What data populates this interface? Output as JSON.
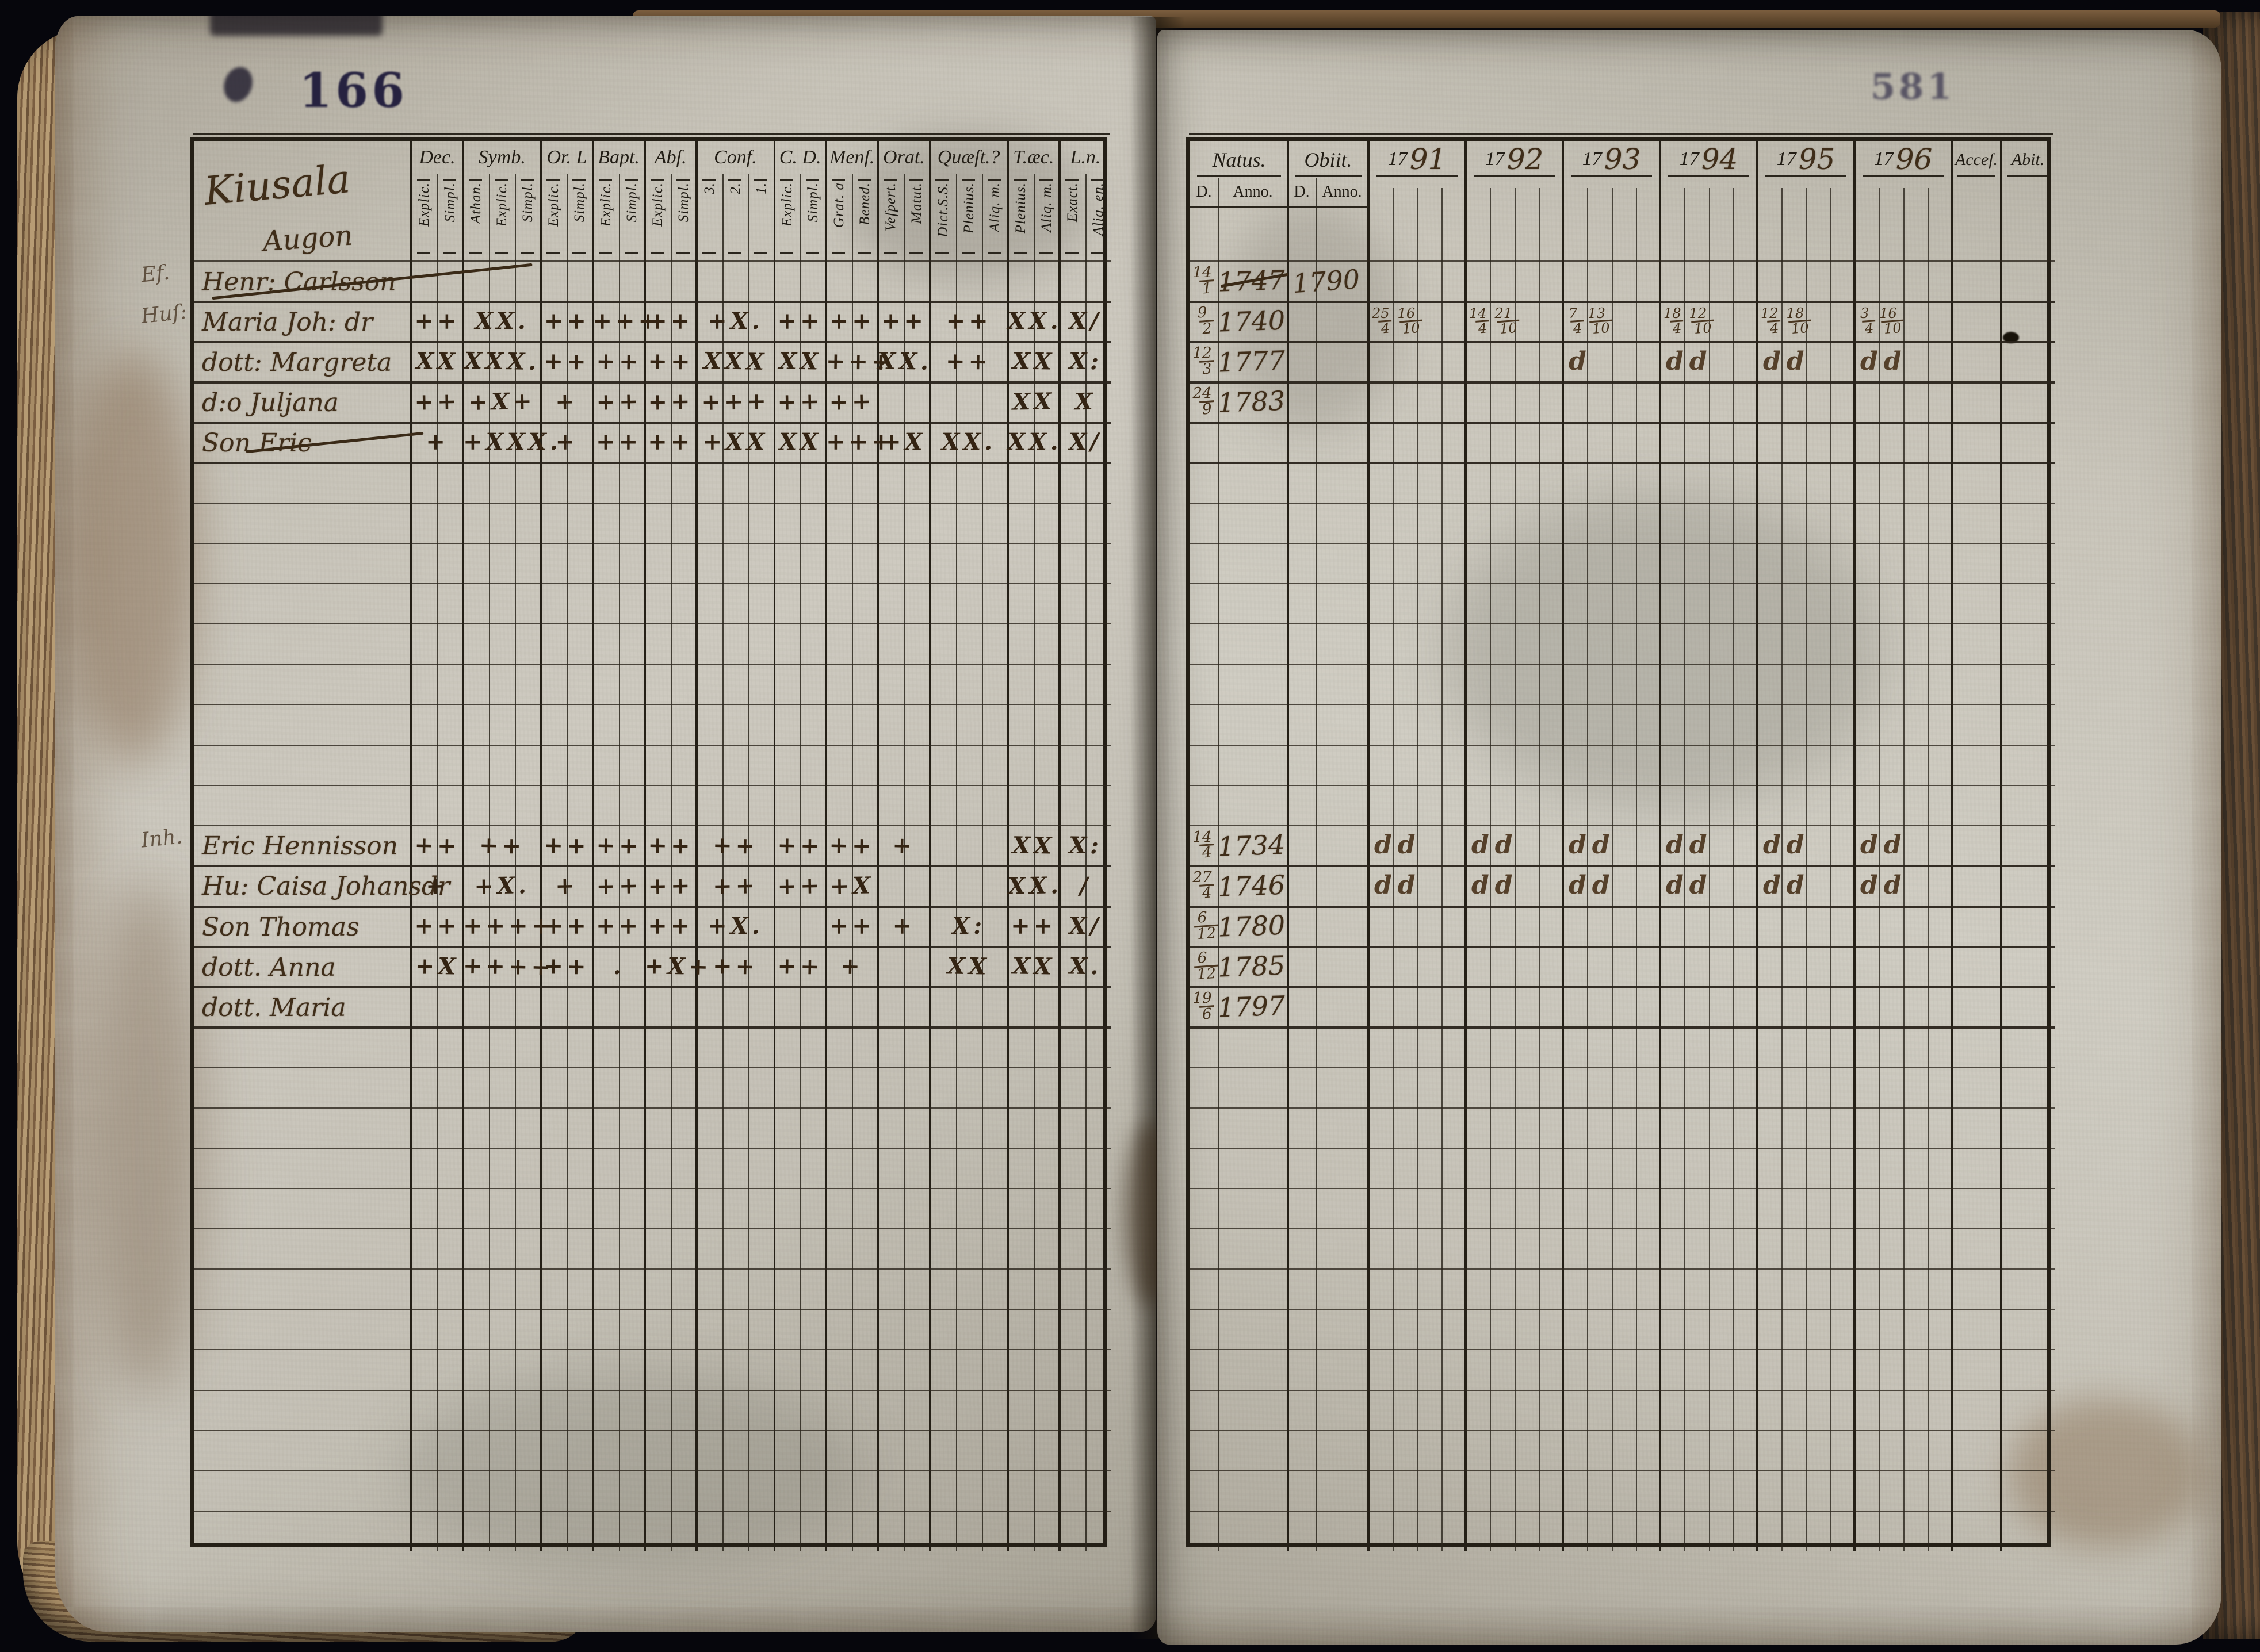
{
  "page": {
    "left_number": "166",
    "right_number": "581"
  },
  "ink": {
    "print": "#211c14",
    "hand": "#3f2d19",
    "hand_light": "#5d472e",
    "stamp_left": "#262240",
    "stamp_right": "#4a465a"
  },
  "left_page": {
    "title_line1": "Kiusala",
    "title_line2": "Augon",
    "marginalia": [
      {
        "row": 0,
        "text": "Ef."
      },
      {
        "row": 1,
        "text": "Huſ:"
      },
      {
        "row": 14,
        "text": "Inh."
      }
    ],
    "header_groups": [
      {
        "label": "Dec.",
        "subs": [
          "Explic.",
          "Simpl."
        ]
      },
      {
        "label": "Symb.",
        "subs": [
          "Athan.",
          "Explic.",
          "Simpl."
        ]
      },
      {
        "label": "Or. L",
        "subs": [
          "Explic.",
          "Simpl."
        ]
      },
      {
        "label": "Bapt.",
        "subs": [
          "Explic.",
          "Simpl."
        ]
      },
      {
        "label": "Abſ.",
        "subs": [
          "Explic.",
          "Simpl."
        ]
      },
      {
        "label": "Conf.",
        "subs": [
          "3.",
          "2.",
          "1."
        ]
      },
      {
        "label": "C. D.",
        "subs": [
          "Explic.",
          "Simpl."
        ]
      },
      {
        "label": "Menſ.",
        "subs": [
          "Grat. a",
          "Bened."
        ]
      },
      {
        "label": "Orat.",
        "subs": [
          "Veſpert.",
          "Matut."
        ]
      },
      {
        "label": "Quæſt.?",
        "subs": [
          "Dict.S.S.",
          "Plenius.",
          "Aliq. m."
        ]
      },
      {
        "label": "T.æc.",
        "subs": [
          "Plenius.",
          "Aliq. m."
        ]
      },
      {
        "label": "L.n.",
        "subs": [
          "Exact.",
          "Aliq. en."
        ]
      }
    ],
    "rows": [
      {
        "row": 0,
        "name": "Henr: Carlsson",
        "struck": true,
        "marks": [
          "",
          "",
          "",
          "",
          "",
          "",
          "",
          "",
          "",
          "",
          "",
          ""
        ]
      },
      {
        "row": 1,
        "name": "Maria Joh: dr",
        "marks": [
          "++",
          "XX.",
          "++",
          "+++",
          "++",
          "+X.",
          "++",
          "++",
          "++",
          "++",
          "XX.",
          "X/"
        ]
      },
      {
        "row": 2,
        "name": "dott: Margreta",
        "marks": [
          "XX",
          "XXX.",
          "++",
          "++",
          "++",
          "XXX",
          "XX",
          "+++",
          "XX.",
          "++",
          "XX",
          "X:"
        ]
      },
      {
        "row": 3,
        "name": "d:o Juljana",
        "marks": [
          "++",
          "+X+",
          "+",
          "++",
          "++",
          "+++",
          "++",
          "++",
          "",
          "",
          "XX",
          "X"
        ]
      },
      {
        "row": 4,
        "name": "Son Eric",
        "struck": true,
        "marks": [
          "+",
          "+XXX.",
          "+",
          "++",
          "++",
          "+XX",
          "XX",
          "+++",
          "+X",
          "XX.",
          "XX.",
          "X/"
        ]
      },
      {
        "row": 14,
        "name": "Eric Hennisson",
        "marks": [
          "++",
          "++",
          "++",
          "++",
          "++",
          "++",
          "++",
          "++",
          "+",
          "",
          "XX",
          "X:"
        ]
      },
      {
        "row": 15,
        "name": "Hu: Caisa Johansdr",
        "marks": [
          "+",
          "+X.",
          "+",
          "++",
          "++",
          "++",
          "++",
          "+X",
          "",
          "",
          "XX.",
          "/"
        ]
      },
      {
        "row": 16,
        "name": "Son Thomas",
        "marks": [
          "++",
          "++++",
          "++",
          "++",
          "++",
          "+X.",
          "",
          "++",
          "+",
          "X:",
          "++",
          "X/"
        ]
      },
      {
        "row": 17,
        "name": "dott. Anna",
        "marks": [
          "+X",
          "++++",
          "++",
          ".",
          "+X+",
          "++",
          "++",
          "+",
          "",
          "XX",
          "XX",
          "X."
        ]
      },
      {
        "row": 18,
        "name": "dott. Maria",
        "marks": [
          "",
          "",
          "",
          "",
          "",
          "",
          "",
          "",
          "",
          "",
          "",
          ""
        ]
      }
    ]
  },
  "right_page": {
    "header": {
      "natus": "Natus.",
      "obiit": "Obiit.",
      "d_label": "D.",
      "anno_label": "Anno.",
      "years": [
        "1791",
        "1792",
        "1793",
        "1794",
        "1795",
        "1796"
      ],
      "acces": "Acceſ.",
      "abit": "Abit."
    },
    "rows": [
      {
        "row": 0,
        "natus_d": "14/1",
        "natus_anno": "1747",
        "anno_struck": true,
        "obiit_anno": "1790",
        "years": [
          "",
          "",
          "",
          "",
          "",
          ""
        ]
      },
      {
        "row": 1,
        "natus_d": "9/2",
        "natus_anno": "1740",
        "years": [
          "25/4 16/10",
          "14/4 21/10",
          "7/4 13/10",
          "18/4 12/10",
          "12/4 18/10",
          "3/4 16/10"
        ]
      },
      {
        "row": 2,
        "natus_d": "12/3",
        "natus_anno": "1777",
        "years": [
          "",
          "",
          "d",
          "d d",
          "d d",
          "d d"
        ]
      },
      {
        "row": 3,
        "natus_d": "24/9",
        "natus_anno": "1783",
        "years": [
          "",
          "",
          "",
          "",
          "",
          ""
        ]
      },
      {
        "row": 14,
        "natus_d": "14/4",
        "natus_anno": "1734",
        "years": [
          "d d",
          "d d",
          "d d",
          "d d",
          "d d",
          "d d"
        ]
      },
      {
        "row": 15,
        "natus_d": "27/4",
        "natus_anno": "1746",
        "years": [
          "d d",
          "d d",
          "d d",
          "d d",
          "d d",
          "d d"
        ]
      },
      {
        "row": 16,
        "natus_d": "6/12",
        "natus_anno": "1780",
        "years": [
          "",
          "",
          "",
          "",
          "",
          ""
        ]
      },
      {
        "row": 17,
        "natus_d": "6/12",
        "natus_anno": "1785",
        "years": [
          "",
          "",
          "",
          "",
          "",
          ""
        ]
      },
      {
        "row": 18,
        "natus_d": "19/6",
        "natus_anno": "1797",
        "years": [
          "",
          "",
          "",
          "",
          "",
          ""
        ]
      }
    ]
  }
}
